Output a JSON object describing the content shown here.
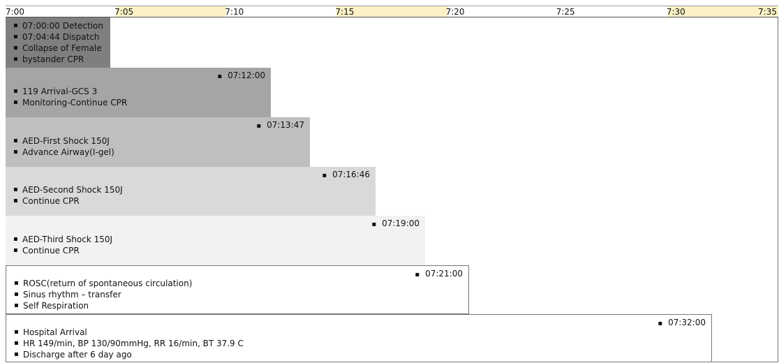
{
  "chart_data": {
    "type": "timeline",
    "x_axis": {
      "ticks": [
        "7:00",
        "7:05",
        "7:10",
        "7:15",
        "7:20",
        "7:25",
        "7:30",
        "7:35"
      ],
      "tick_minutes": [
        0,
        5,
        10,
        15,
        20,
        25,
        30,
        35
      ],
      "range_minutes": [
        0,
        35
      ],
      "highlight_minutes": [
        [
          5,
          10
        ],
        [
          15,
          20
        ],
        [
          30,
          35
        ]
      ],
      "highlight_color": "#fdf2c7"
    },
    "events": [
      {
        "time_label": "",
        "end_minute": 4.73,
        "fill": "#7f7f7f",
        "items": [
          "07:00:00 Detection",
          "07:04:44 Dispatch",
          "Collapse of Female",
          "bystander CPR"
        ]
      },
      {
        "time_label": "07:12:00",
        "end_minute": 12.0,
        "fill": "#a5a5a5",
        "items": [
          "119 Arrival-GCS 3",
          "Monitoring-Continue CPR"
        ]
      },
      {
        "time_label": "07:13:47",
        "end_minute": 13.78,
        "fill": "#bfbfbf",
        "items": [
          "AED-First Shock 150J",
          "Advance Airway(I-gel)"
        ]
      },
      {
        "time_label": "07:16:46",
        "end_minute": 16.77,
        "fill": "#d9d9d9",
        "items": [
          "AED-Second Shock 150J",
          "Continue CPR"
        ]
      },
      {
        "time_label": "07:19:00",
        "end_minute": 19.0,
        "fill": "#f2f2f2",
        "items": [
          "AED-Third Shock 150J",
          "Continue CPR"
        ]
      },
      {
        "time_label": "07:21:00",
        "end_minute": 21.0,
        "fill": "#ffffff",
        "items": [
          "ROSC(return of spontaneous circulation)",
          "Sinus rhythm – transfer",
          "Self Respiration"
        ]
      },
      {
        "time_label": "07:32:00",
        "end_minute": 32.0,
        "fill": "#ffffff",
        "items": [
          "Hospital Arrival",
          "HR 149/min, BP 130/90mmHg, RR 16/min, BT 37.9 C",
          "Discharge after 6 day ago"
        ]
      }
    ]
  }
}
